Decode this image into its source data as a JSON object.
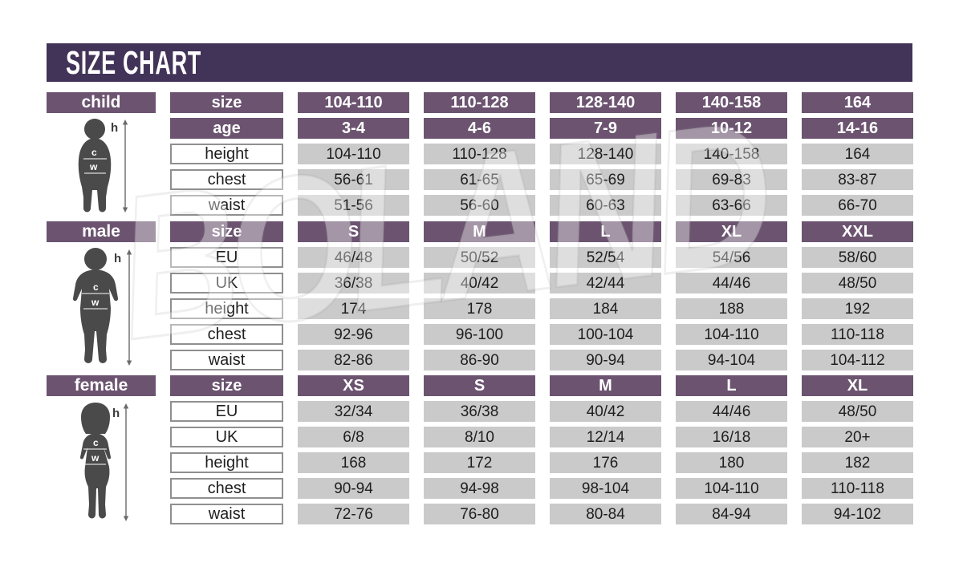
{
  "title": "SIZE CHART",
  "watermark": {
    "text": "BOLAND"
  },
  "colors": {
    "title_bar": "#423358",
    "header_purple": "#6C5471",
    "cell_gray": "#cacaca",
    "label_border": "#8f8f8f",
    "figure_gray": "#4a4a4a"
  },
  "chart_data": {
    "type": "table",
    "title": "SIZE CHART",
    "tables": [
      {
        "group": "child",
        "columns": [
          "104-110",
          "110-128",
          "128-140",
          "140-158",
          "164"
        ],
        "rows": [
          {
            "label": "age",
            "values": [
              "3-4",
              "4-6",
              "7-9",
              "10-12",
              "14-16"
            ]
          },
          {
            "label": "height",
            "values": [
              "104-110",
              "110-128",
              "128-140",
              "140-158",
              "164"
            ]
          },
          {
            "label": "chest",
            "values": [
              "56-61",
              "61-65",
              "65-69",
              "69-83",
              "83-87"
            ]
          },
          {
            "label": "waist",
            "values": [
              "51-56",
              "56-60",
              "60-63",
              "63-66",
              "66-70"
            ]
          }
        ]
      },
      {
        "group": "male",
        "columns": [
          "S",
          "M",
          "L",
          "XL",
          "XXL"
        ],
        "rows": [
          {
            "label": "EU",
            "values": [
              "46/48",
              "50/52",
              "52/54",
              "54/56",
              "58/60"
            ]
          },
          {
            "label": "UK",
            "values": [
              "36/38",
              "40/42",
              "42/44",
              "44/46",
              "48/50"
            ]
          },
          {
            "label": "height",
            "values": [
              "174",
              "178",
              "184",
              "188",
              "192"
            ]
          },
          {
            "label": "chest",
            "values": [
              "92-96",
              "96-100",
              "100-104",
              "104-110",
              "110-118"
            ]
          },
          {
            "label": "waist",
            "values": [
              "82-86",
              "86-90",
              "90-94",
              "94-104",
              "104-112"
            ]
          }
        ]
      },
      {
        "group": "female",
        "columns": [
          "XS",
          "S",
          "M",
          "L",
          "XL"
        ],
        "rows": [
          {
            "label": "EU",
            "values": [
              "32/34",
              "36/38",
              "40/42",
              "44/46",
              "48/50"
            ]
          },
          {
            "label": "UK",
            "values": [
              "6/8",
              "8/10",
              "12/14",
              "16/18",
              "20+"
            ]
          },
          {
            "label": "height",
            "values": [
              "168",
              "172",
              "176",
              "180",
              "182"
            ]
          },
          {
            "label": "chest",
            "values": [
              "90-94",
              "94-98",
              "98-104",
              "104-110",
              "110-118"
            ]
          },
          {
            "label": "waist",
            "values": [
              "72-76",
              "76-80",
              "80-84",
              "84-94",
              "94-102"
            ]
          }
        ]
      }
    ]
  },
  "sections": [
    {
      "label": "child",
      "figure_labels": {
        "h": "h",
        "c": "c",
        "w": "w"
      },
      "header_rows": [
        {
          "label": "size",
          "values": [
            "104-110",
            "110-128",
            "128-140",
            "140-158",
            "164"
          ]
        },
        {
          "label": "age",
          "values": [
            "3-4",
            "4-6",
            "7-9",
            "10-12",
            "14-16"
          ]
        }
      ],
      "data_rows": [
        {
          "label": "height",
          "values": [
            "104-110",
            "110-128",
            "128-140",
            "140-158",
            "164"
          ]
        },
        {
          "label": "chest",
          "values": [
            "56-61",
            "61-65",
            "65-69",
            "69-83",
            "83-87"
          ]
        },
        {
          "label": "waist",
          "values": [
            "51-56",
            "56-60",
            "60-63",
            "63-66",
            "66-70"
          ]
        }
      ]
    },
    {
      "label": "male",
      "figure_labels": {
        "h": "h",
        "c": "c",
        "w": "w"
      },
      "header_rows": [
        {
          "label": "size",
          "values": [
            "S",
            "M",
            "L",
            "XL",
            "XXL"
          ]
        }
      ],
      "data_rows": [
        {
          "label": "EU",
          "values": [
            "46/48",
            "50/52",
            "52/54",
            "54/56",
            "58/60"
          ]
        },
        {
          "label": "UK",
          "values": [
            "36/38",
            "40/42",
            "42/44",
            "44/46",
            "48/50"
          ]
        },
        {
          "label": "height",
          "values": [
            "174",
            "178",
            "184",
            "188",
            "192"
          ]
        },
        {
          "label": "chest",
          "values": [
            "92-96",
            "96-100",
            "100-104",
            "104-110",
            "110-118"
          ]
        },
        {
          "label": "waist",
          "values": [
            "82-86",
            "86-90",
            "90-94",
            "94-104",
            "104-112"
          ]
        }
      ]
    },
    {
      "label": "female",
      "figure_labels": {
        "h": "h",
        "c": "c",
        "w": "w"
      },
      "header_rows": [
        {
          "label": "size",
          "values": [
            "XS",
            "S",
            "M",
            "L",
            "XL"
          ]
        }
      ],
      "data_rows": [
        {
          "label": "EU",
          "values": [
            "32/34",
            "36/38",
            "40/42",
            "44/46",
            "48/50"
          ]
        },
        {
          "label": "UK",
          "values": [
            "6/8",
            "8/10",
            "12/14",
            "16/18",
            "20+"
          ]
        },
        {
          "label": "height",
          "values": [
            "168",
            "172",
            "176",
            "180",
            "182"
          ]
        },
        {
          "label": "chest",
          "values": [
            "90-94",
            "94-98",
            "98-104",
            "104-110",
            "110-118"
          ]
        },
        {
          "label": "waist",
          "values": [
            "72-76",
            "76-80",
            "80-84",
            "84-94",
            "94-102"
          ]
        }
      ]
    }
  ]
}
